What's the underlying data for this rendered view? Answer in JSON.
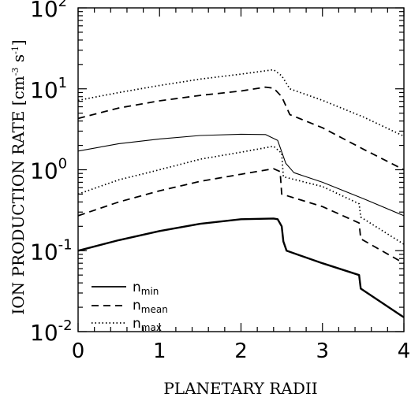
{
  "chart_data": {
    "type": "line",
    "xlabel": "PLANETARY RADII",
    "ylabel_parts": {
      "main": "ION PRODUCTION RATE [cm",
      "sup1": "-3",
      "mid": " s",
      "sup2": "-1",
      "end": "]"
    },
    "xlim": [
      0,
      4
    ],
    "ylim": [
      0.01,
      100
    ],
    "yscale": "log",
    "grid": false,
    "legend_position": "bottom-left",
    "x_ticks": [
      {
        "value": 0,
        "label": "0"
      },
      {
        "value": 1,
        "label": "1"
      },
      {
        "value": 2,
        "label": "2"
      },
      {
        "value": 3,
        "label": "3"
      },
      {
        "value": 4,
        "label": "4"
      }
    ],
    "y_ticks": [
      {
        "value": 0.01,
        "base": "10",
        "exp": "-2"
      },
      {
        "value": 0.1,
        "base": "10",
        "exp": "-1"
      },
      {
        "value": 1,
        "base": "10",
        "exp": "0"
      },
      {
        "value": 10,
        "base": "10",
        "exp": "1"
      },
      {
        "value": 100,
        "base": "10",
        "exp": "2"
      }
    ],
    "legend": [
      {
        "base": "n",
        "sub": "min",
        "style": "solid"
      },
      {
        "base": "n",
        "sub": "mean",
        "style": "dashed"
      },
      {
        "base": "n",
        "sub": "max",
        "style": "dotted"
      }
    ],
    "series": [
      {
        "style": "solid",
        "width": 2.4,
        "points": [
          [
            0,
            0.1
          ],
          [
            0.5,
            0.135
          ],
          [
            1.0,
            0.175
          ],
          [
            1.5,
            0.215
          ],
          [
            2.0,
            0.245
          ],
          [
            2.4,
            0.25
          ],
          [
            2.45,
            0.245
          ],
          [
            2.5,
            0.2
          ],
          [
            2.52,
            0.13
          ],
          [
            2.56,
            0.1
          ],
          [
            3.0,
            0.07
          ],
          [
            3.45,
            0.05
          ],
          [
            3.47,
            0.034
          ],
          [
            4.0,
            0.015
          ]
        ]
      },
      {
        "style": "solid",
        "width": 1.1,
        "points": [
          [
            0,
            1.7
          ],
          [
            0.5,
            2.1
          ],
          [
            1.0,
            2.4
          ],
          [
            1.5,
            2.65
          ],
          [
            2.0,
            2.75
          ],
          [
            2.3,
            2.72
          ],
          [
            2.45,
            2.3
          ],
          [
            2.55,
            1.2
          ],
          [
            2.65,
            0.92
          ],
          [
            3.0,
            0.7
          ],
          [
            3.5,
            0.44
          ],
          [
            4.0,
            0.27
          ]
        ]
      },
      {
        "style": "dashed",
        "width": 1.8,
        "points": [
          [
            0,
            0.27
          ],
          [
            0.5,
            0.4
          ],
          [
            1.0,
            0.55
          ],
          [
            1.5,
            0.72
          ],
          [
            2.0,
            0.88
          ],
          [
            2.4,
            1.03
          ],
          [
            2.48,
            0.95
          ],
          [
            2.5,
            0.5
          ],
          [
            3.0,
            0.35
          ],
          [
            3.45,
            0.22
          ],
          [
            3.47,
            0.14
          ],
          [
            4.0,
            0.07
          ]
        ]
      },
      {
        "style": "dotted",
        "width": 1.7,
        "points": [
          [
            0,
            0.5
          ],
          [
            0.5,
            0.75
          ],
          [
            1.0,
            1.0
          ],
          [
            1.5,
            1.35
          ],
          [
            2.0,
            1.65
          ],
          [
            2.4,
            1.95
          ],
          [
            2.5,
            1.6
          ],
          [
            2.52,
            0.82
          ],
          [
            3.0,
            0.62
          ],
          [
            3.45,
            0.38
          ],
          [
            3.47,
            0.26
          ],
          [
            4.0,
            0.12
          ]
        ]
      },
      {
        "style": "dashed",
        "width": 1.8,
        "points": [
          [
            0,
            4.3
          ],
          [
            0.5,
            5.8
          ],
          [
            1.0,
            7.1
          ],
          [
            1.5,
            8.3
          ],
          [
            2.0,
            9.4
          ],
          [
            2.3,
            10.5
          ],
          [
            2.4,
            10.2
          ],
          [
            2.5,
            8.0
          ],
          [
            2.6,
            4.8
          ],
          [
            3.0,
            3.3
          ],
          [
            3.5,
            1.8
          ],
          [
            4.0,
            1.0
          ]
        ]
      },
      {
        "style": "dotted",
        "width": 1.7,
        "points": [
          [
            0,
            7.2
          ],
          [
            0.5,
            9.0
          ],
          [
            1.0,
            11.0
          ],
          [
            1.5,
            13.2
          ],
          [
            2.0,
            15.2
          ],
          [
            2.4,
            17.2
          ],
          [
            2.5,
            14.5
          ],
          [
            2.6,
            10.0
          ],
          [
            3.0,
            7.2
          ],
          [
            3.5,
            4.5
          ],
          [
            4.0,
            2.6
          ]
        ]
      }
    ]
  }
}
